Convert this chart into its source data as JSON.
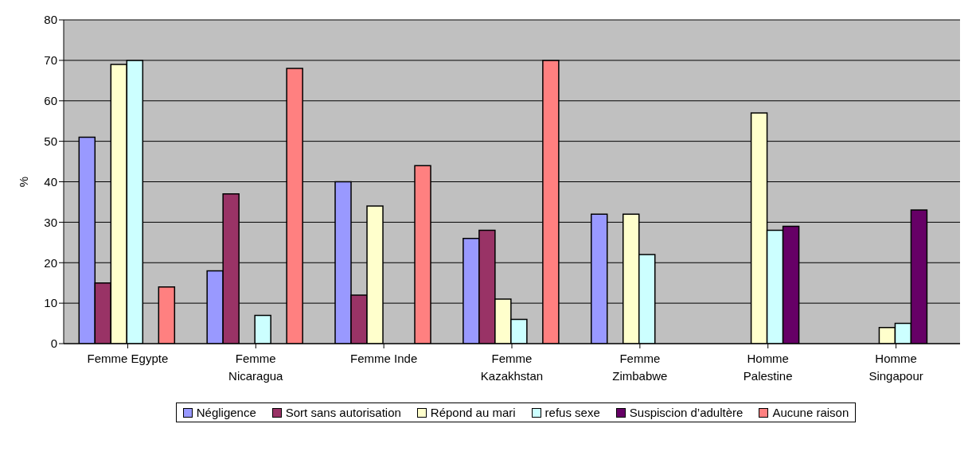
{
  "chart_data": {
    "type": "bar",
    "ylabel": "%",
    "categories": [
      "Femme Egypte",
      "Femme Nicaragua",
      "Femme Inde",
      "Femme Kazakhstan",
      "Femme Zimbabwe",
      "Homme Palestine",
      "Homme Singapour"
    ],
    "series": [
      {
        "name": "Négligence",
        "color": "#9999ff",
        "values": [
          51,
          18,
          40,
          26,
          32,
          null,
          null
        ]
      },
      {
        "name": "Sort sans autorisation",
        "color": "#993366",
        "values": [
          15,
          37,
          12,
          28,
          null,
          null,
          null
        ]
      },
      {
        "name": "Répond au mari",
        "color": "#ffffcc",
        "values": [
          69,
          null,
          34,
          11,
          32,
          57,
          4
        ]
      },
      {
        "name": "refus sexe",
        "color": "#ccffff",
        "values": [
          70,
          7,
          null,
          6,
          22,
          28,
          5
        ]
      },
      {
        "name": "Suspiscion d’adultère",
        "color": "#660066",
        "values": [
          null,
          null,
          null,
          null,
          null,
          29,
          33
        ]
      },
      {
        "name": "Aucune raison",
        "color": "#ff8080",
        "values": [
          14,
          68,
          44,
          70,
          null,
          null,
          null
        ]
      }
    ],
    "ylim": [
      0,
      80
    ],
    "yticks": [
      0,
      10,
      20,
      30,
      40,
      50,
      60,
      70,
      80
    ],
    "grid": "y",
    "legend": "bottom"
  }
}
